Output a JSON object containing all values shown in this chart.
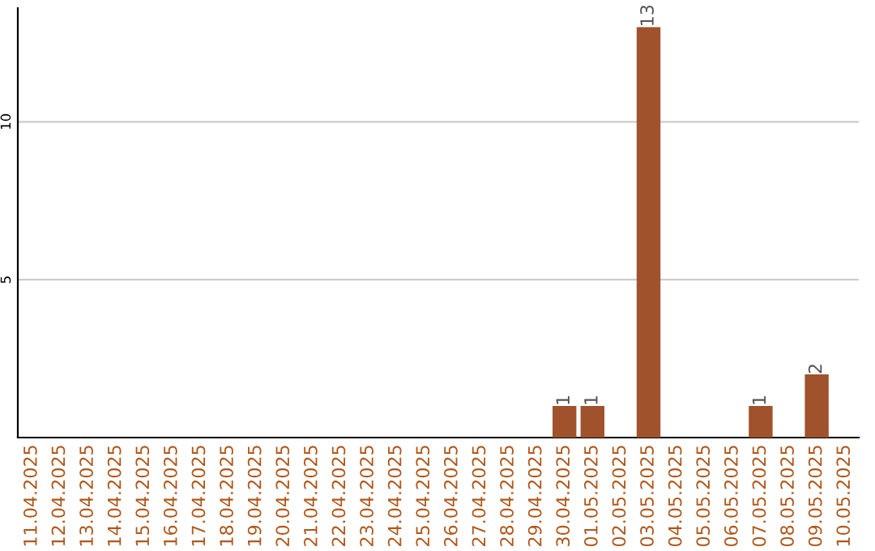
{
  "chart_data": {
    "type": "bar",
    "categories": [
      "11.04.2025",
      "12.04.2025",
      "13.04.2025",
      "14.04.2025",
      "15.04.2025",
      "16.04.2025",
      "17.04.2025",
      "18.04.2025",
      "19.04.2025",
      "20.04.2025",
      "21.04.2025",
      "22.04.2025",
      "23.04.2025",
      "24.04.2025",
      "25.04.2025",
      "26.04.2025",
      "27.04.2025",
      "28.04.2025",
      "29.04.2025",
      "30.04.2025",
      "01.05.2025",
      "02.05.2025",
      "03.05.2025",
      "04.05.2025",
      "05.05.2025",
      "06.05.2025",
      "07.05.2025",
      "08.05.2025",
      "09.05.2025",
      "10.05.2025"
    ],
    "values": [
      0,
      0,
      0,
      0,
      0,
      0,
      0,
      0,
      0,
      0,
      0,
      0,
      0,
      0,
      0,
      0,
      0,
      0,
      0,
      1,
      1,
      0,
      13,
      0,
      0,
      0,
      1,
      0,
      2,
      0
    ],
    "value_labels": [
      null,
      null,
      null,
      null,
      null,
      null,
      null,
      null,
      null,
      null,
      null,
      null,
      null,
      null,
      null,
      null,
      null,
      null,
      null,
      "1",
      "1",
      null,
      "13",
      null,
      null,
      null,
      "1",
      null,
      "2",
      null
    ],
    "color": "#a0522d",
    "ylim": [
      0,
      13.6
    ],
    "yticks": [
      5,
      10
    ],
    "grid": "y"
  }
}
